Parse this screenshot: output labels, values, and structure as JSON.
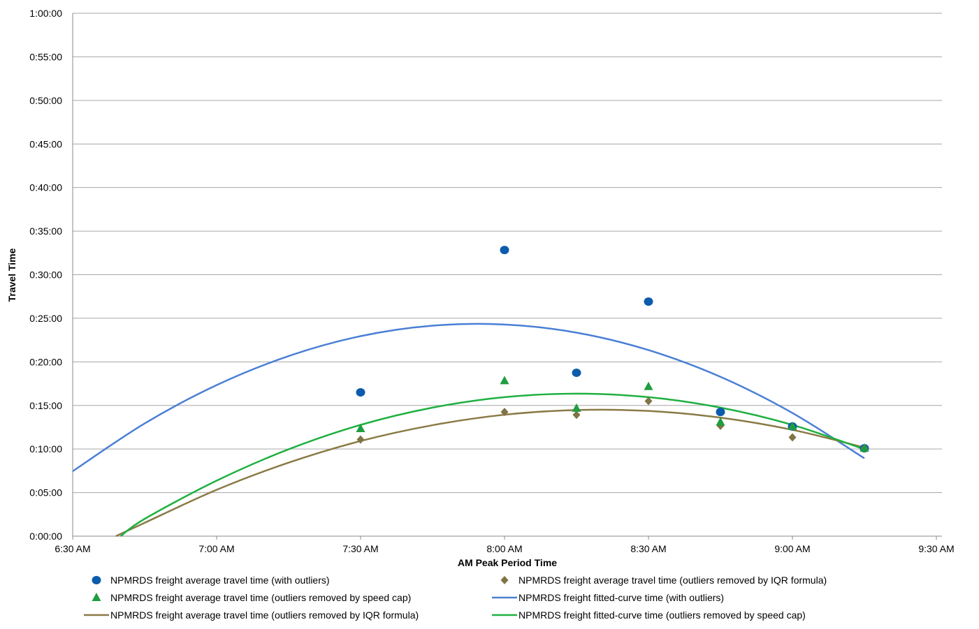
{
  "chart_data": {
    "type": "scatter",
    "xlabel": "AM Peak Period Time",
    "ylabel": "Travel Time",
    "xlim": [
      "6:30 AM",
      "9:30 AM"
    ],
    "ylim": [
      "0:00:00",
      "1:00:00"
    ],
    "x_ticks": [
      "6:30 AM",
      "7:00 AM",
      "7:30 AM",
      "8:00 AM",
      "8:30 AM",
      "9:00 AM",
      "9:30 AM"
    ],
    "y_ticks": [
      "0:00:00",
      "0:05:00",
      "0:10:00",
      "0:15:00",
      "0:20:00",
      "0:25:00",
      "0:30:00",
      "0:35:00",
      "0:40:00",
      "0:45:00",
      "0:50:00",
      "0:55:00",
      "1:00:00"
    ],
    "grid": "horizontal",
    "legend_position": "bottom",
    "series": [
      {
        "name": "NPMRDS freight average travel time (with outliers)",
        "kind": "marker",
        "marker": "circle",
        "color": "#0b5cad",
        "points": [
          [
            "7:30 AM",
            "0:16:30"
          ],
          [
            "8:00 AM",
            "0:32:50"
          ],
          [
            "8:15 AM",
            "0:18:45"
          ],
          [
            "8:30 AM",
            "0:26:55"
          ],
          [
            "8:45 AM",
            "0:14:15"
          ],
          [
            "9:00 AM",
            "0:12:35"
          ],
          [
            "9:15 AM",
            "0:10:05"
          ]
        ]
      },
      {
        "name": "NPMRDS freight average travel time (outliers removed by IQR formula)",
        "kind": "marker",
        "marker": "diamond",
        "color": "#7f7444",
        "points": [
          [
            "7:30 AM",
            "0:11:05"
          ],
          [
            "8:00 AM",
            "0:14:15"
          ],
          [
            "8:15 AM",
            "0:13:55"
          ],
          [
            "8:30 AM",
            "0:15:30"
          ],
          [
            "8:45 AM",
            "0:12:40"
          ],
          [
            "9:00 AM",
            "0:11:20"
          ],
          [
            "9:15 AM",
            "0:10:05"
          ]
        ]
      },
      {
        "name": "NPMRDS freight average travel time (outliers removed by speed cap)",
        "kind": "marker",
        "marker": "triangle",
        "color": "#1e9e3e",
        "points": [
          [
            "7:30 AM",
            "0:12:20"
          ],
          [
            "8:00 AM",
            "0:17:50"
          ],
          [
            "8:15 AM",
            "0:14:40"
          ],
          [
            "8:30 AM",
            "0:17:10"
          ],
          [
            "8:45 AM",
            "0:13:05"
          ],
          [
            "9:00 AM",
            "0:12:35"
          ],
          [
            "9:15 AM",
            "0:10:05"
          ]
        ]
      },
      {
        "name": "NPMRDS freight fitted-curve time (with outliers)",
        "kind": "line",
        "color": "#4a7fd6",
        "points": [
          [
            "6:30 AM",
            "0:07:27"
          ],
          [
            "6:45 AM",
            "0:12:56"
          ],
          [
            "7:00 AM",
            "0:17:20"
          ],
          [
            "7:15 AM",
            "0:20:40"
          ],
          [
            "7:30 AM",
            "0:22:57"
          ],
          [
            "7:45 AM",
            "0:24:09"
          ],
          [
            "8:00 AM",
            "0:24:17"
          ],
          [
            "8:15 AM",
            "0:23:21"
          ],
          [
            "8:30 AM",
            "0:21:21"
          ],
          [
            "8:45 AM",
            "0:18:17"
          ],
          [
            "9:00 AM",
            "0:14:08"
          ],
          [
            "9:15 AM",
            "0:08:56"
          ]
        ]
      },
      {
        "name": "NPMRDS freight average travel time (outliers removed by IQR formula)",
        "kind": "line",
        "color": "#8a7a45",
        "points": [
          [
            "6:39 AM",
            "0:00:00"
          ],
          [
            "6:45 AM",
            "0:01:32"
          ],
          [
            "7:00 AM",
            "0:05:19"
          ],
          [
            "7:15 AM",
            "0:08:26"
          ],
          [
            "7:30 AM",
            "0:10:55"
          ],
          [
            "7:45 AM",
            "0:12:44"
          ],
          [
            "8:00 AM",
            "0:13:56"
          ],
          [
            "8:15 AM",
            "0:14:28"
          ],
          [
            "8:30 AM",
            "0:14:22"
          ],
          [
            "8:45 AM",
            "0:13:36"
          ],
          [
            "9:00 AM",
            "0:12:12"
          ],
          [
            "9:15 AM",
            "0:10:10"
          ]
        ]
      },
      {
        "name": "NPMRDS freight fitted-curve time (outliers removed by speed cap)",
        "kind": "line",
        "color": "#1fb040",
        "points": [
          [
            "6:40 AM",
            "0:00:00"
          ],
          [
            "6:45 AM",
            "0:01:59"
          ],
          [
            "7:00 AM",
            "0:06:22"
          ],
          [
            "7:15 AM",
            "0:09:58"
          ],
          [
            "7:30 AM",
            "0:12:46"
          ],
          [
            "7:45 AM",
            "0:14:45"
          ],
          [
            "8:00 AM",
            "0:15:57"
          ],
          [
            "8:15 AM",
            "0:16:21"
          ],
          [
            "8:30 AM",
            "0:15:57"
          ],
          [
            "8:45 AM",
            "0:14:45"
          ],
          [
            "9:00 AM",
            "0:12:46"
          ],
          [
            "9:15 AM",
            "0:09:58"
          ]
        ]
      }
    ]
  }
}
